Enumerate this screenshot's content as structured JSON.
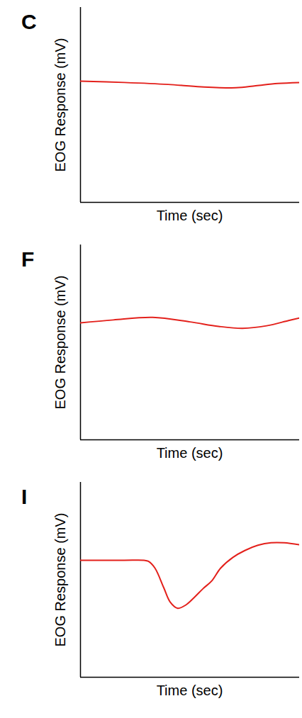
{
  "chart_data": [
    {
      "type": "line",
      "title": "C",
      "x_label": "Time (sec)",
      "y_label": "EOG Response (mV)",
      "x": [
        0,
        20,
        40,
        55,
        71,
        80,
        90,
        100
      ],
      "values": [
        62.2,
        61.5,
        60.5,
        59.3,
        58.8,
        59.8,
        61.0,
        61.5
      ],
      "color": "#e3201b",
      "xlim": [
        0,
        100
      ],
      "ylim": [
        0,
        100
      ],
      "xticks": [],
      "yticks": [],
      "tick_labels": false
    },
    {
      "type": "line",
      "title": "F",
      "x_label": "Time (sec)",
      "y_label": "EOG Response (mV)",
      "x": [
        0,
        15,
        33,
        50,
        63,
        74,
        85,
        95,
        100
      ],
      "values": [
        60,
        61.5,
        62.8,
        60.5,
        58.2,
        57.2,
        58.5,
        61.2,
        62.5
      ],
      "color": "#e3201b",
      "xlim": [
        0,
        100
      ],
      "ylim": [
        0,
        100
      ],
      "xticks": [],
      "yticks": [],
      "tick_labels": false
    },
    {
      "type": "line",
      "title": "I",
      "x_label": "Time (sec)",
      "y_label": "EOG Response (mV)",
      "x": [
        0,
        20,
        29,
        31,
        34,
        38,
        41,
        44.4,
        48,
        52,
        56,
        60,
        64,
        69.6,
        75,
        81,
        87,
        93,
        100
      ],
      "values": [
        60,
        60,
        60,
        59.5,
        56,
        46,
        38.5,
        35.4,
        37,
        41,
        45.5,
        49.5,
        56,
        61.5,
        65,
        67.7,
        69,
        69,
        68
      ],
      "color": "#e3201b",
      "xlim": [
        0,
        100
      ],
      "ylim": [
        0,
        100
      ],
      "xticks": [],
      "yticks": [],
      "tick_labels": false
    }
  ]
}
